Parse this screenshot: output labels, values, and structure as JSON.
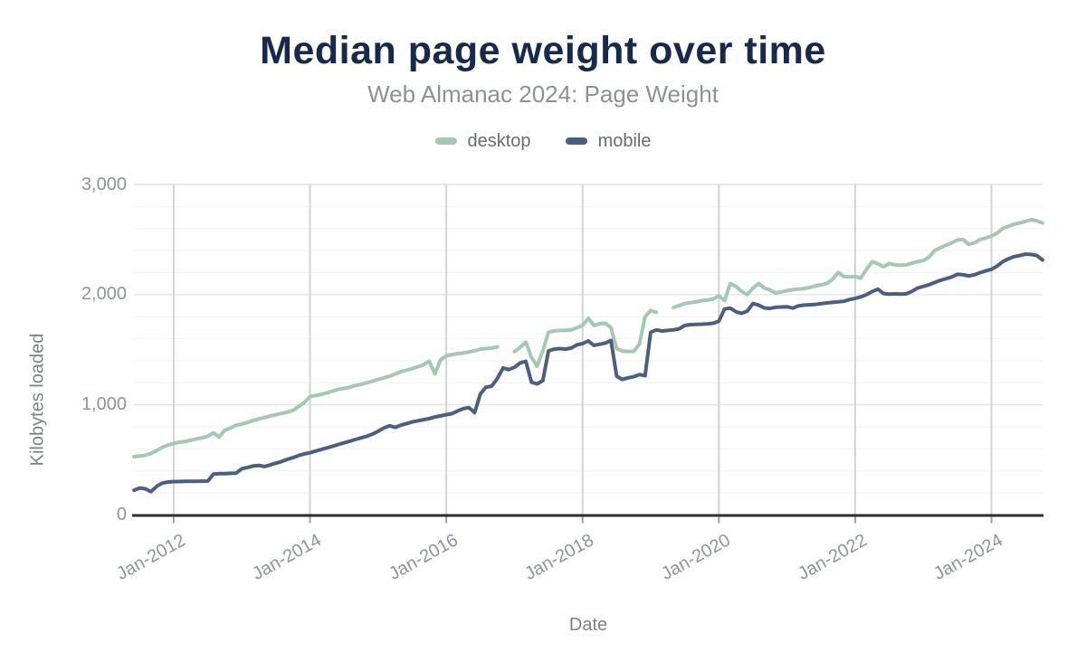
{
  "title": {
    "text": "Median page weight over time"
  },
  "subtitle": {
    "text": "Web Almanac 2024: Page Weight"
  },
  "legend": {
    "items": [
      {
        "label": "desktop",
        "color": "#a4c8b2"
      },
      {
        "label": "mobile",
        "color": "#4b6081"
      }
    ]
  },
  "axes": {
    "x": {
      "title": "Date"
    },
    "y": {
      "title": "Kilobytes loaded"
    }
  },
  "palette": {
    "title_color": "#17294d",
    "subtitle_color": "#8b9199",
    "tick_label_color": "#8e939c",
    "axis_line_color": "#2b2d30",
    "vertical_gridline_color": "#d2d3d6",
    "major_gridline_color": "#e3e4e6",
    "minor_gridline_color": "#f2f2f4",
    "axis_tick_color": "#9ca1a8"
  },
  "chart_data": {
    "type": "line",
    "title": "Median page weight over time",
    "subtitle": "Web Almanac 2024: Page Weight",
    "xlabel": "Date",
    "ylabel": "Kilobytes loaded",
    "ylim": [
      0,
      3000
    ],
    "x_unit": "month",
    "x_start": "2011-06",
    "x_end": "2024-10",
    "grid": {
      "y_major_step": 1000,
      "y_minor_step": 200,
      "x_gridlines_at_year_ticks": true
    },
    "legend_position": "top-center",
    "y_ticks": [
      {
        "value": 0,
        "label": "0"
      },
      {
        "value": 1000,
        "label": "1,000"
      },
      {
        "value": 2000,
        "label": "2,000"
      },
      {
        "value": 3000,
        "label": "3,000"
      }
    ],
    "x_ticks": [
      {
        "month_index": 7,
        "label": "Jan-2012"
      },
      {
        "month_index": 31,
        "label": "Jan-2014"
      },
      {
        "month_index": 55,
        "label": "Jan-2016"
      },
      {
        "month_index": 79,
        "label": "Jan-2018"
      },
      {
        "month_index": 103,
        "label": "Jan-2020"
      },
      {
        "month_index": 127,
        "label": "Jan-2022"
      },
      {
        "month_index": 151,
        "label": "Jan-2024"
      }
    ],
    "series": [
      {
        "name": "desktop",
        "color": "#a4c8b2",
        "values": [
          530,
          535,
          542,
          558,
          585,
          615,
          635,
          650,
          660,
          668,
          678,
          690,
          700,
          715,
          745,
          708,
          770,
          790,
          815,
          825,
          840,
          858,
          872,
          885,
          898,
          910,
          922,
          933,
          950,
          985,
          1020,
          1075,
          1085,
          1095,
          1110,
          1125,
          1140,
          1150,
          1160,
          1175,
          1185,
          1200,
          1215,
          1230,
          1245,
          1260,
          1280,
          1300,
          1315,
          1330,
          1345,
          1365,
          1395,
          1280,
          1410,
          1445,
          1455,
          1465,
          1470,
          1480,
          1490,
          1505,
          1510,
          1515,
          1525,
          null,
          null,
          1483,
          1520,
          1570,
          1430,
          1350,
          1490,
          1660,
          1670,
          1675,
          1675,
          1680,
          1700,
          1720,
          1785,
          1720,
          1735,
          1742,
          1700,
          1510,
          1488,
          1485,
          1485,
          1550,
          1800,
          1856,
          1840,
          null,
          null,
          1884,
          1900,
          1920,
          1927,
          1935,
          1946,
          1950,
          1960,
          1990,
          1946,
          2100,
          2075,
          2030,
          2000,
          2060,
          2100,
          2060,
          2042,
          2015,
          2025,
          2036,
          2045,
          2050,
          2055,
          2065,
          2080,
          2090,
          2102,
          2137,
          2201,
          2165,
          2160,
          2165,
          2150,
          2230,
          2300,
          2280,
          2254,
          2283,
          2270,
          2268,
          2270,
          2285,
          2300,
          2310,
          2340,
          2400,
          2425,
          2449,
          2470,
          2496,
          2500,
          2457,
          2470,
          2500,
          2515,
          2531,
          2560,
          2600,
          2620,
          2640,
          2650,
          2665,
          2680,
          2670,
          2650
        ]
      },
      {
        "name": "mobile",
        "color": "#4b6081",
        "values": [
          225,
          245,
          238,
          212,
          260,
          290,
          300,
          303,
          304,
          305,
          306,
          306,
          307,
          308,
          372,
          375,
          376,
          378,
          380,
          420,
          432,
          445,
          450,
          440,
          455,
          470,
          485,
          505,
          520,
          540,
          555,
          565,
          580,
          595,
          610,
          625,
          640,
          655,
          670,
          685,
          700,
          715,
          735,
          760,
          790,
          810,
          795,
          815,
          830,
          845,
          855,
          865,
          875,
          890,
          900,
          910,
          920,
          945,
          965,
          975,
          930,
          1100,
          1160,
          1170,
          1240,
          1335,
          1320,
          1340,
          1380,
          1395,
          1205,
          1190,
          1220,
          1490,
          1505,
          1510,
          1505,
          1515,
          1545,
          1555,
          1580,
          1540,
          1550,
          1560,
          1585,
          1260,
          1230,
          1245,
          1255,
          1275,
          1265,
          1660,
          1680,
          1670,
          1675,
          1680,
          1690,
          1720,
          1728,
          1730,
          1732,
          1735,
          1740,
          1760,
          1870,
          1878,
          1845,
          1830,
          1850,
          1920,
          1905,
          1880,
          1875,
          1885,
          1888,
          1890,
          1878,
          1898,
          1905,
          1908,
          1912,
          1918,
          1925,
          1930,
          1935,
          1940,
          1955,
          1967,
          1980,
          2000,
          2028,
          2050,
          2010,
          2005,
          2008,
          2005,
          2008,
          2030,
          2060,
          2075,
          2090,
          2110,
          2130,
          2145,
          2160,
          2185,
          2180,
          2170,
          2180,
          2200,
          2215,
          2230,
          2260,
          2300,
          2325,
          2345,
          2355,
          2368,
          2365,
          2355,
          2315
        ]
      }
    ]
  }
}
